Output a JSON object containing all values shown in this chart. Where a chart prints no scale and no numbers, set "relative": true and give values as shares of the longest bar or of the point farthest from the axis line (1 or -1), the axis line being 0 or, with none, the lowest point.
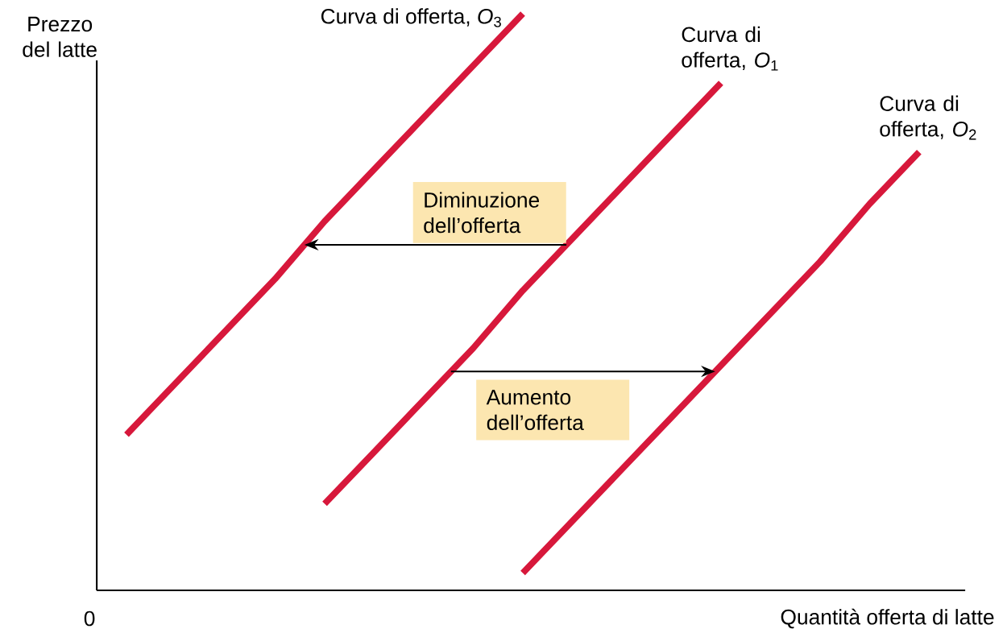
{
  "chart_data": {
    "type": "line",
    "relative": true,
    "xlabel": "Quantità offerta di latte",
    "ylabel": "Prezzo del latte",
    "categories": [
      null,
      null,
      null,
      null,
      null,
      null,
      null,
      null,
      null,
      null,
      null,
      null,
      null,
      null,
      null,
      null,
      null
    ],
    "series": [
      {
        "name": "Curva di offerta, *O*$_{3}$",
        "color": "#d7183b",
        "values": [
          0.27,
          0.36,
          0.45,
          0.54,
          0.64,
          0.73,
          0.82,
          0.91,
          1,
          null,
          null,
          null,
          null,
          null,
          null,
          null,
          null
        ]
      },
      {
        "name": "Curva di offerta, *O*$_{1}$",
        "color": "#d7183b",
        "values": [
          null,
          null,
          null,
          null,
          0.15,
          0.24,
          0.33,
          0.42,
          0.52,
          0.61,
          0.7,
          0.79,
          0.88,
          null,
          null,
          null,
          null
        ]
      },
      {
        "name": "Curva di offerta, *O*$_{2}$",
        "color": "#d7183b",
        "values": [
          null,
          null,
          null,
          null,
          null,
          null,
          null,
          null,
          0.03,
          0.12,
          0.21,
          0.3,
          0.39,
          0.48,
          0.57,
          0.67,
          0.76
        ]
      }
    ],
    "annotations": [
      "0",
      "Diminuzione dell’offerta",
      "Aumento dell’offerta"
    ]
  }
}
